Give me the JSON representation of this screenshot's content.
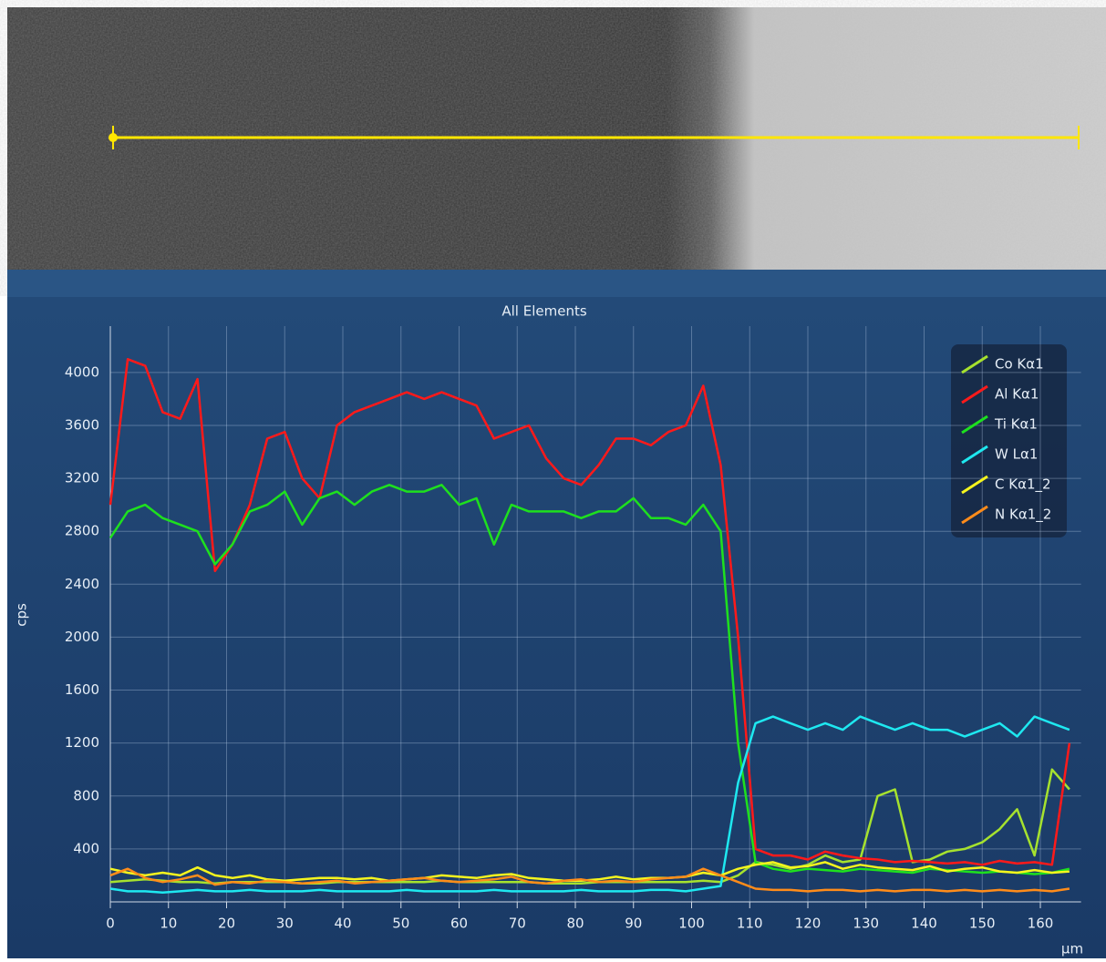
{
  "chart_data": {
    "type": "line",
    "title": "All Elements",
    "x_label": "µm",
    "y_label": "cps",
    "x": [
      0,
      3,
      6,
      9,
      12,
      15,
      18,
      21,
      24,
      27,
      30,
      33,
      36,
      39,
      42,
      45,
      48,
      51,
      54,
      57,
      60,
      63,
      66,
      69,
      72,
      75,
      78,
      81,
      84,
      87,
      90,
      93,
      96,
      99,
      102,
      105,
      108,
      111,
      114,
      117,
      120,
      123,
      126,
      129,
      132,
      135,
      138,
      141,
      144,
      147,
      150,
      153,
      156,
      159,
      162,
      165
    ],
    "xlim": [
      0,
      167
    ],
    "xticks": [
      0,
      10,
      20,
      30,
      40,
      50,
      60,
      70,
      80,
      90,
      100,
      110,
      120,
      130,
      140,
      150,
      160
    ],
    "ylim": [
      0,
      4350
    ],
    "yticks": [
      400,
      800,
      1200,
      1600,
      2000,
      2400,
      2800,
      3200,
      3600,
      4000
    ],
    "grid": true,
    "legend": "top-right",
    "series": [
      {
        "name": "Co Kα1",
        "color": "#a6e22e",
        "values": [
          150,
          160,
          170,
          160,
          150,
          150,
          140,
          150,
          150,
          150,
          150,
          140,
          140,
          150,
          150,
          150,
          150,
          150,
          150,
          160,
          150,
          150,
          150,
          150,
          150,
          140,
          140,
          140,
          150,
          150,
          150,
          150,
          150,
          150,
          160,
          150,
          200,
          300,
          280,
          250,
          280,
          350,
          300,
          320,
          800,
          850,
          300,
          320,
          380,
          400,
          450,
          550,
          700,
          350,
          1000,
          850
        ]
      },
      {
        "name": "Al Kα1",
        "color": "#ff1a1a",
        "values": [
          3000,
          4100,
          4050,
          3700,
          3650,
          3950,
          2500,
          2700,
          3000,
          3500,
          3550,
          3200,
          3050,
          3600,
          3700,
          3750,
          3800,
          3850,
          3800,
          3850,
          3800,
          3750,
          3500,
          3550,
          3600,
          3350,
          3200,
          3150,
          3300,
          3500,
          3500,
          3450,
          3550,
          3600,
          3900,
          3300,
          2000,
          400,
          350,
          350,
          320,
          380,
          350,
          330,
          320,
          300,
          310,
          300,
          290,
          300,
          280,
          310,
          290,
          300,
          280,
          1200
        ]
      },
      {
        "name": "Ti Kα1",
        "color": "#1ee01e",
        "values": [
          2750,
          2950,
          3000,
          2900,
          2850,
          2800,
          2550,
          2700,
          2950,
          3000,
          3100,
          2850,
          3050,
          3100,
          3000,
          3100,
          3150,
          3100,
          3100,
          3150,
          3000,
          3050,
          2700,
          3000,
          2950,
          2950,
          2950,
          2900,
          2950,
          2950,
          3050,
          2900,
          2900,
          2850,
          3000,
          2800,
          1200,
          300,
          250,
          230,
          250,
          240,
          230,
          250,
          240,
          230,
          220,
          250,
          240,
          230,
          220,
          230,
          220,
          210,
          220,
          250
        ]
      },
      {
        "name": "W Lα1",
        "color": "#1ee8f0",
        "values": [
          100,
          80,
          80,
          70,
          80,
          90,
          80,
          80,
          90,
          80,
          80,
          80,
          90,
          80,
          80,
          80,
          80,
          90,
          80,
          80,
          80,
          80,
          90,
          80,
          80,
          80,
          80,
          90,
          80,
          80,
          80,
          90,
          90,
          80,
          100,
          120,
          900,
          1350,
          1400,
          1350,
          1300,
          1350,
          1300,
          1400,
          1350,
          1300,
          1350,
          1300,
          1300,
          1250,
          1300,
          1350,
          1250,
          1400,
          1350,
          1300
        ]
      },
      {
        "name": "C Kα1_2",
        "color": "#f5f51e",
        "values": [
          250,
          220,
          200,
          220,
          200,
          260,
          200,
          180,
          200,
          170,
          160,
          170,
          180,
          180,
          170,
          180,
          160,
          170,
          180,
          200,
          190,
          180,
          200,
          210,
          180,
          170,
          160,
          160,
          170,
          190,
          170,
          180,
          180,
          190,
          220,
          200,
          250,
          280,
          300,
          260,
          270,
          300,
          250,
          280,
          260,
          250,
          240,
          270,
          230,
          250,
          260,
          230,
          220,
          240,
          220,
          230
        ]
      },
      {
        "name": "N Kα1_2",
        "color": "#ff8c1a",
        "values": [
          200,
          250,
          180,
          150,
          170,
          200,
          130,
          150,
          140,
          160,
          150,
          140,
          150,
          160,
          140,
          150,
          160,
          170,
          180,
          160,
          150,
          160,
          170,
          190,
          150,
          140,
          160,
          170,
          150,
          160,
          150,
          170,
          180,
          190,
          250,
          200,
          150,
          100,
          90,
          90,
          80,
          90,
          90,
          80,
          90,
          80,
          90,
          90,
          80,
          90,
          80,
          90,
          80,
          90,
          80,
          100
        ]
      }
    ]
  }
}
